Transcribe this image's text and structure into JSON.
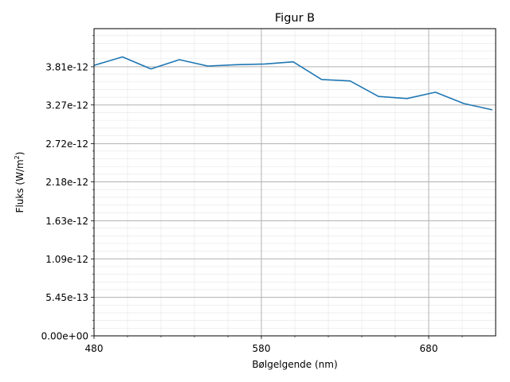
{
  "chart_data": {
    "type": "line",
    "title": "Figur B",
    "xlabel": "Bølgelgende (nm)",
    "ylabel_main": "Fluks (W/m",
    "ylabel_sup": "2",
    "ylabel_close": ")",
    "xlim": [
      480,
      720
    ],
    "ylim": [
      0,
      4.35e-12
    ],
    "x_ticks": [
      480,
      580,
      680
    ],
    "x_tick_labels": [
      "480",
      "580",
      "680"
    ],
    "y_ticks": [
      0,
      5.45e-13,
      1.09e-12,
      1.63e-12,
      2.18e-12,
      2.72e-12,
      3.27e-12,
      3.81e-12
    ],
    "y_tick_labels": [
      "0.00e+00",
      "5.45e-13",
      "1.09e-12",
      "1.63e-12",
      "2.18e-12",
      "2.72e-12",
      "3.27e-12",
      "3.81e-12"
    ],
    "grid": true,
    "series": [
      {
        "color": "#1f77b4",
        "x": [
          480,
          497,
          514,
          531,
          548,
          565,
          582,
          599,
          616,
          633,
          650,
          667,
          684,
          701,
          718
        ],
        "y": [
          3.83e-12,
          3.95e-12,
          3.78e-12,
          3.91e-12,
          3.82e-12,
          3.84e-12,
          3.85e-12,
          3.88e-12,
          3.63e-12,
          3.61e-12,
          3.39e-12,
          3.36e-12,
          3.45e-12,
          3.29e-12,
          3.2e-12
        ]
      }
    ]
  }
}
